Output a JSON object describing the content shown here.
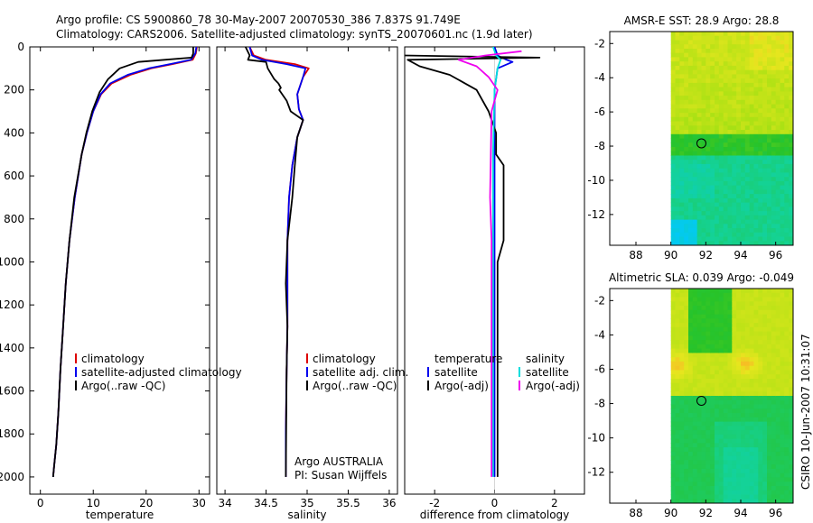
{
  "header": {
    "line1": "Argo profile: CS 5900860_78 30-May-2007 20070530_386 7.837S 91.749E",
    "line2": "Climatology: CARS2006. Satellite-adjusted climatology: synTS_20070601.nc (1.9d later)"
  },
  "side_label": "CSIRO 10-Jun-2007 10:31:07",
  "colors": {
    "climatology": "#dd0000",
    "satellite": "#0000ee",
    "argo": "#000000",
    "cyan": "#00dddd",
    "magenta": "#ee00ee"
  },
  "chart_data": [
    {
      "type": "line",
      "id": "temperature",
      "xlabel": "temperature",
      "ylabel": "",
      "xlim": [
        -2,
        32
      ],
      "ylim": [
        2080,
        0
      ],
      "xticks": [
        "0",
        "10",
        "20",
        "30"
      ],
      "xtick_values": [
        0,
        10,
        20,
        30
      ],
      "yticks": [
        "0",
        "200",
        "400",
        "600",
        "800",
        "1000",
        "1200",
        "1400",
        "1600",
        "1800",
        "2000"
      ],
      "ytick_values": [
        0,
        200,
        400,
        600,
        800,
        1000,
        1200,
        1400,
        1600,
        1800,
        2000
      ],
      "legend": [
        "climatology",
        "satellite-adjusted climatology",
        "Argo(..raw -QC)"
      ],
      "series": [
        {
          "name": "climatology",
          "color_key": "climatology",
          "x": [
            29.6,
            29.4,
            28.8,
            25,
            21,
            17,
            13.5,
            11.5,
            10,
            8.8,
            7.8,
            6.5,
            5.5,
            4.8,
            4.3,
            3.8,
            3.4,
            3.0,
            2.6,
            2.4
          ],
          "y": [
            0,
            30,
            60,
            80,
            100,
            130,
            170,
            220,
            300,
            400,
            500,
            700,
            900,
            1100,
            1300,
            1500,
            1700,
            1850,
            1950,
            2000
          ]
        },
        {
          "name": "satellite-adjusted climatology",
          "color_key": "satellite",
          "x": [
            29.5,
            29.3,
            28.5,
            24.5,
            20.5,
            16.5,
            13.2,
            11.4,
            10,
            8.8,
            7.8,
            6.5,
            5.5,
            4.8,
            4.3,
            3.8,
            3.4,
            3.0,
            2.6,
            2.4
          ],
          "y": [
            0,
            30,
            60,
            80,
            100,
            130,
            170,
            220,
            300,
            400,
            500,
            700,
            900,
            1100,
            1300,
            1500,
            1700,
            1850,
            1950,
            2000
          ]
        },
        {
          "name": "Argo(..raw -QC)",
          "color_key": "argo",
          "x": [
            28.9,
            28.9,
            28.6,
            23.5,
            18.5,
            15,
            12.8,
            11.2,
            9.8,
            8.7,
            7.8,
            6.4,
            5.5,
            4.8,
            4.3,
            3.8,
            3.4,
            3.0,
            2.6,
            2.4
          ],
          "y": [
            0,
            30,
            50,
            60,
            70,
            100,
            150,
            210,
            300,
            400,
            500,
            700,
            900,
            1100,
            1300,
            1500,
            1700,
            1850,
            1950,
            2000
          ]
        }
      ]
    },
    {
      "type": "line",
      "id": "salinity",
      "xlabel": "salinity",
      "ylabel": "",
      "xlim": [
        33.9,
        36.1
      ],
      "ylim": [
        2080,
        0
      ],
      "xticks": [
        "34",
        "34.5",
        "35",
        "35.5",
        "36"
      ],
      "xtick_values": [
        34,
        34.5,
        35,
        35.5,
        36
      ],
      "yticks": [],
      "ytick_values": [],
      "legend": [
        "climatology",
        "satellite adj. clim.",
        "Argo(..raw -QC)"
      ],
      "annotations": [
        "Argo AUSTRALIA",
        "PI: Susan Wijffels"
      ],
      "series": [
        {
          "name": "climatology",
          "color_key": "climatology",
          "x": [
            34.3,
            34.35,
            34.5,
            34.85,
            35.02,
            34.95,
            34.88,
            34.9,
            34.95,
            34.88,
            34.82,
            34.78,
            34.76,
            34.76,
            34.76,
            34.75,
            34.74,
            34.74
          ],
          "y": [
            0,
            40,
            60,
            80,
            100,
            140,
            220,
            290,
            340,
            420,
            550,
            700,
            900,
            1100,
            1300,
            1500,
            1800,
            2000
          ]
        },
        {
          "name": "satellite adj. clim.",
          "color_key": "satellite",
          "x": [
            34.3,
            34.33,
            34.45,
            34.75,
            34.98,
            34.95,
            34.88,
            34.9,
            34.95,
            34.88,
            34.82,
            34.78,
            34.76,
            34.76,
            34.76,
            34.75,
            34.74,
            34.74
          ],
          "y": [
            0,
            40,
            60,
            80,
            100,
            140,
            220,
            290,
            340,
            420,
            550,
            700,
            900,
            1100,
            1300,
            1500,
            1800,
            2000
          ]
        },
        {
          "name": "Argo(..raw -QC)",
          "color_key": "argo",
          "x": [
            34.25,
            34.3,
            34.28,
            34.5,
            34.52,
            34.6,
            34.65,
            34.68,
            34.66,
            34.75,
            34.8,
            34.95,
            34.88,
            34.85,
            34.82,
            34.76,
            34.74,
            34.76,
            34.75,
            34.74
          ],
          "y": [
            0,
            40,
            60,
            70,
            100,
            150,
            170,
            190,
            200,
            250,
            300,
            340,
            420,
            550,
            700,
            900,
            1100,
            1300,
            1500,
            2000
          ]
        }
      ]
    },
    {
      "type": "line",
      "id": "difference",
      "xlabel": "difference from climatology",
      "ylabel": "",
      "xlim": [
        -3,
        3
      ],
      "ylim": [
        2080,
        0
      ],
      "xticks": [
        "-2",
        "0",
        "2"
      ],
      "xtick_values": [
        -2,
        0,
        2
      ],
      "yticks": [],
      "ytick_values": [],
      "legend_temperature": {
        "title": "temperature",
        "items": [
          "satellite",
          "Argo(-adj)"
        ]
      },
      "legend_salinity": {
        "title": "salinity",
        "items": [
          "satellite",
          "Argo(-adj)"
        ]
      },
      "series": [
        {
          "name": "temperature satellite",
          "color_key": "satellite",
          "x": [
            0,
            0.1,
            0.4,
            0.6,
            0.1,
            0,
            0
          ],
          "y": [
            0,
            40,
            60,
            70,
            100,
            200,
            2000
          ]
        },
        {
          "name": "temperature Argo(-adj)",
          "color_key": "argo",
          "x": [
            -3.0,
            1.5,
            -2.9,
            -2.5,
            -1.5,
            -0.6,
            -0.2,
            0.05,
            0.05,
            0.3,
            0.3,
            0.1,
            0.1
          ],
          "y": [
            40,
            50,
            60,
            90,
            130,
            200,
            300,
            400,
            500,
            550,
            900,
            1000,
            2000
          ]
        },
        {
          "name": "salinity satellite",
          "color_key": "cyan",
          "x": [
            -0.05,
            0.05,
            0.2,
            0.1,
            0,
            -0.05,
            -0.05
          ],
          "y": [
            0,
            40,
            60,
            100,
            200,
            500,
            2000
          ]
        },
        {
          "name": "salinity Argo(-adj)",
          "color_key": "magenta",
          "x": [
            0.9,
            -0.3,
            -1.2,
            -0.6,
            -0.2,
            0.1,
            -0.1,
            -0.15,
            -0.1,
            -0.1
          ],
          "y": [
            20,
            40,
            60,
            90,
            140,
            200,
            300,
            700,
            900,
            2000
          ]
        }
      ]
    },
    {
      "type": "heatmap",
      "id": "sst-map",
      "title": "AMSR-E SST: 28.9 Argo: 28.8",
      "xlim": [
        86.5,
        97
      ],
      "ylim": [
        -13.8,
        -1.3
      ],
      "xticks": [
        "88",
        "90",
        "92",
        "94",
        "96"
      ],
      "xtick_values": [
        88,
        90,
        92,
        94,
        96
      ],
      "yticks": [
        "-2",
        "-4",
        "-6",
        "-8",
        "-10",
        "-12"
      ],
      "ytick_values": [
        -2,
        -4,
        -6,
        -8,
        -10,
        -12
      ],
      "data_lon_start": 90,
      "marker": {
        "lon": 91.749,
        "lat": -7.837
      }
    },
    {
      "type": "heatmap",
      "id": "sla-map",
      "title": "Altimetric SLA: 0.039 Argo: -0.049",
      "xlim": [
        86.5,
        97
      ],
      "ylim": [
        -13.8,
        -1.3
      ],
      "xticks": [
        "88",
        "90",
        "92",
        "94",
        "96"
      ],
      "xtick_values": [
        88,
        90,
        92,
        94,
        96
      ],
      "yticks": [
        "-2",
        "-4",
        "-6",
        "-8",
        "-10",
        "-12"
      ],
      "ytick_values": [
        -2,
        -4,
        -6,
        -8,
        -10,
        -12
      ],
      "data_lon_start": 90,
      "marker": {
        "lon": 91.749,
        "lat": -7.837
      }
    }
  ]
}
